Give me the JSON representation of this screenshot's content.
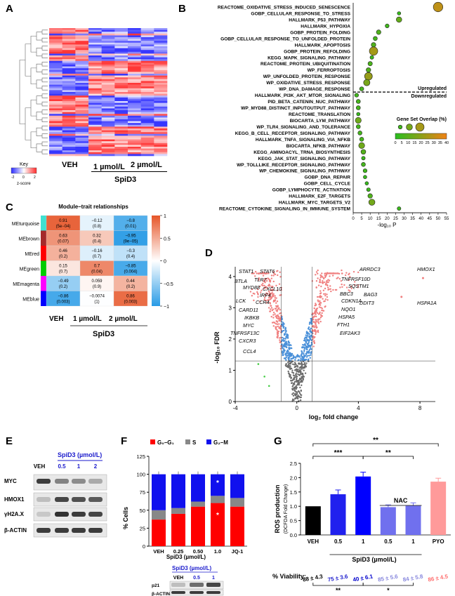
{
  "panels": {
    "a": {
      "letter": "A",
      "key_title": "Key",
      "key_ticks": [
        "-2",
        "0",
        "2"
      ],
      "key_label": "z-score",
      "col_labels": [
        "VEH",
        "1 µmol/L",
        "2 µmol/L"
      ],
      "group_label": "SpiD3"
    },
    "b": {
      "letter": "B",
      "up_label": "Upregulated",
      "down_label": "Downregulated",
      "legend_title": "Gene Set Overlap (%)",
      "legend_ticks": [
        "0",
        "5",
        "10",
        "15",
        "20",
        "25",
        "30",
        "35",
        "40"
      ],
      "xlabel": "-log₁₀ P",
      "x_ticks": [
        "0",
        "5",
        "10",
        "15",
        "20",
        "25",
        "30",
        "35",
        "40",
        "45",
        "50",
        "55"
      ]
    },
    "c": {
      "letter": "C",
      "title": "Module–trait relationships",
      "col_labels": [
        "VEH",
        "1 µmol/L",
        "2 µmol/L"
      ],
      "group_label": "SpiD3",
      "colorbar_ticks": [
        "1",
        "0.5",
        "0",
        "−0.5",
        "−1"
      ]
    },
    "d": {
      "letter": "D",
      "ylabel": "-log₁₀ FDR",
      "xlabel": "log₂ fold change",
      "x_ticks": [
        "-4",
        "0",
        "4",
        "8"
      ],
      "y_ticks": [
        "0",
        "1",
        "2",
        "3",
        "4"
      ],
      "genes_left": [
        "STAT1",
        "STAT6",
        "BTLA",
        "TLR7",
        "MYD88",
        "CXCL10",
        "IRF4",
        "LCK",
        "CCR4",
        "CARD11",
        "IKBKB",
        "MYC",
        "TNFRSF13C",
        "CXCR3",
        "CCL4"
      ],
      "genes_right": [
        "ARRDC3",
        "HMOX1",
        "TNFRSF10D",
        "SQSTM1",
        "BBC3",
        "BAG3",
        "CDKN1A",
        "DDIT3",
        "HSPA1A",
        "NQO1",
        "HSPA5",
        "FTH1",
        "EIF2AK3"
      ]
    },
    "e": {
      "letter": "E",
      "group_label": "SpiD3 (µmol/L)",
      "lanes": [
        "VEH",
        "0.5",
        "1",
        "2"
      ],
      "rows": [
        "MYC",
        "HMOX1",
        "γH2A.X",
        "β-ACTIN"
      ]
    },
    "f": {
      "letter": "F",
      "legend": [
        "G₀–G₁",
        "S",
        "G₂–M"
      ],
      "ylabel": "% Cells",
      "y_ticks": [
        "0",
        "25",
        "50",
        "75",
        "100",
        "125"
      ],
      "group_label": "SpiD3 (µmol/L)",
      "blot_group_label": "SpiD3 (µmol/L)",
      "blot_lanes": [
        "VEH",
        "0.5",
        "1"
      ],
      "blot_rows": [
        "p21",
        "β-ACTIN"
      ],
      "star": "*"
    },
    "g": {
      "letter": "G",
      "ylabel": "ROS production",
      "ylabel2": "(DCFDA Fold Change)",
      "y_ticks": [
        "0.0",
        "0.5",
        "1.0",
        "1.5",
        "2.0",
        "2.5"
      ],
      "group_label": "SpiD3 (µmol/L)",
      "nac_label": "NAC",
      "sig_top": "**",
      "sig_1": "***",
      "sig_2": "**",
      "viability_label": "% Viability:",
      "sig_bottom_1": "**",
      "sig_bottom_2": "*"
    }
  },
  "chart_data": [
    {
      "id": "b",
      "type": "scatter",
      "title": "",
      "xlabel": "-log10 P",
      "xlim": [
        0,
        55
      ],
      "pathways": [
        {
          "name": "REACTOME_OXIDATIVE_STRESS_INDUCED_SENESCENCE",
          "x": 50,
          "overlap": 30
        },
        {
          "name": "GOBP_CELLULAR_RESPONSE_TO_STRESS",
          "x": 27,
          "overlap": 3
        },
        {
          "name": "HALLMARK_P53_PATHWAY",
          "x": 27,
          "overlap": 12
        },
        {
          "name": "HALLMARK_HYPOXIA",
          "x": 20,
          "overlap": 5
        },
        {
          "name": "GOBP_PROTEIN_FOLDING",
          "x": 15,
          "overlap": 8
        },
        {
          "name": "GOBP_CELLULAR_RESPONSE_TO_UNFOLDED_PROTEIN",
          "x": 13,
          "overlap": 6
        },
        {
          "name": "HALLMARK_APOPTOSIS",
          "x": 12,
          "overlap": 8
        },
        {
          "name": "GOBP_PROTEIN_REFOLDING",
          "x": 12,
          "overlap": 25
        },
        {
          "name": "KEGG_MAPK_SIGNALING_PATHWAY",
          "x": 11,
          "overlap": 4
        },
        {
          "name": "REACTOME_PROTEIN_UBIQUITINATION",
          "x": 10,
          "overlap": 7
        },
        {
          "name": "WP_FERROPTOSIS",
          "x": 9,
          "overlap": 8
        },
        {
          "name": "WP_UNFOLDED_PROTEIN_RESPONSE",
          "x": 9,
          "overlap": 22
        },
        {
          "name": "WP_OXIDATIVE_STRESS_RESPONSE",
          "x": 8,
          "overlap": 16
        },
        {
          "name": "WP_DNA_DAMAGE_RESPONSE",
          "x": 5,
          "overlap": 6
        },
        {
          "name": "HALLMARK_PI3K_AKT_MTOR_SIGNALING",
          "x": 2,
          "overlap": 5
        },
        {
          "name": "PID_BETA_CATENIN_NUC_PATHWAY",
          "x": 3,
          "overlap": 6
        },
        {
          "name": "WP_MYD88_DISTINCT_INPUTOUTPUT_PATHWAY",
          "x": 3,
          "overlap": 6
        },
        {
          "name": "REACTOME_TRANSLATION",
          "x": 3,
          "overlap": 3
        },
        {
          "name": "BIOCARTA_LYM_PATHWAY",
          "x": 3,
          "overlap": 14
        },
        {
          "name": "WP_TLR4_SIGNALING_AND_TOLERANCE",
          "x": 3,
          "overlap": 6
        },
        {
          "name": "KEGG_B_CELL_RECEPTOR_SIGNALING_PATHWAY",
          "x": 4,
          "overlap": 6
        },
        {
          "name": "HALLMARK_TNFA_SIGNALING_VIA_NFKB",
          "x": 5,
          "overlap": 6
        },
        {
          "name": "BIOCARTA_NFKB_PATHWAY",
          "x": 5,
          "overlap": 14
        },
        {
          "name": "KEGG_AMINOACYL_TRNA_BIOSYNTHESIS",
          "x": 6,
          "overlap": 9
        },
        {
          "name": "KEGG_JAK_STAT_SIGNALING_PATHWAY",
          "x": 6,
          "overlap": 4
        },
        {
          "name": "WP_TOLLLIKE_RECEPTOR_SIGNALING_PATHWAY",
          "x": 6,
          "overlap": 6
        },
        {
          "name": "WP_CHEMOKINE_SIGNALING_PATHWAY",
          "x": 7,
          "overlap": 5
        },
        {
          "name": "GOBP_DNA_REPAIR",
          "x": 7,
          "overlap": 3
        },
        {
          "name": "GOBP_CELL_CYCLE",
          "x": 8,
          "overlap": 3
        },
        {
          "name": "GOBP_LYMPHOCYTE_ACTIVATION",
          "x": 9,
          "overlap": 4
        },
        {
          "name": "HALLMARK_E2F_TARGETS",
          "x": 10,
          "overlap": 8
        },
        {
          "name": "HALLMARK_MYC_TARGETS_V2",
          "x": 11,
          "overlap": 15
        },
        {
          "name": "REACTOME_CYTOKINE_SIGNALING_IN_IMMUNE_SYSTEM",
          "x": 27,
          "overlap": 4
        }
      ],
      "up_count": 14
    },
    {
      "id": "c",
      "type": "heatmap",
      "title": "Module–trait relationships",
      "rows": [
        "MEturquoise",
        "MEbrown",
        "MEred",
        "MEgreen",
        "MEmagenta",
        "MEblue"
      ],
      "row_colors": [
        "#40e0d0",
        "#a52a2a",
        "#ff0000",
        "#00cc00",
        "#ff00ff",
        "#0000ff"
      ],
      "cols": [
        "VEH",
        "1 µmol/L",
        "2 µmol/L"
      ],
      "values": [
        [
          0.91,
          -0.12,
          -0.8
        ],
        [
          0.63,
          0.32,
          -0.95
        ],
        [
          0.46,
          -0.16,
          -0.3
        ],
        [
          0.15,
          0.7,
          -0.85
        ],
        [
          -0.49,
          0.059,
          0.44
        ],
        [
          -0.86,
          -0.0074,
          0.86
        ]
      ],
      "pvalues": [
        [
          "(5e−04)",
          "(0.8)",
          "(0.01)"
        ],
        [
          "(0.07)",
          "(0.4)",
          "(9e−05)"
        ],
        [
          "(0.2)",
          "(0.7)",
          "(0.4)"
        ],
        [
          "(0.7)",
          "(0.04)",
          "(0.004)"
        ],
        [
          "(0.2)",
          "(0.9)",
          "(0.2)"
        ],
        [
          "(0.003)",
          "(1)",
          "(0.003)"
        ]
      ],
      "value_labels": [
        [
          "0.91",
          "−0.12",
          "−0.8"
        ],
        [
          "0.63",
          "0.32",
          "−0.95"
        ],
        [
          "0.46",
          "−0.16",
          "−0.3"
        ],
        [
          "0.15",
          "0.7",
          "−0.85"
        ],
        [
          "−0.49",
          "0.059",
          "0.44"
        ],
        [
          "−0.86",
          "−0.0074",
          "0.86"
        ]
      ]
    },
    {
      "id": "f",
      "type": "bar",
      "stacked": true,
      "categories": [
        "VEH",
        "0.25",
        "0.50",
        "1.0",
        "JQ-1"
      ],
      "series": [
        {
          "name": "G0–G1",
          "values": [
            37,
            45,
            55,
            60,
            55
          ],
          "color": "#ff0000"
        },
        {
          "name": "S",
          "values": [
            13,
            8,
            7,
            10,
            12
          ],
          "color": "#888888"
        },
        {
          "name": "G2–M",
          "values": [
            50,
            47,
            38,
            30,
            33
          ],
          "color": "#1010ee"
        }
      ],
      "ylabel": "% Cells",
      "ylim": [
        0,
        125
      ]
    },
    {
      "id": "g",
      "type": "bar",
      "categories": [
        "VEH",
        "0.5",
        "1",
        "0.5",
        "1",
        "PYO"
      ],
      "values": [
        1.0,
        1.42,
        2.04,
        0.97,
        1.02,
        1.86
      ],
      "errors": [
        0,
        0.15,
        0.15,
        0.08,
        0.1,
        0.12
      ],
      "colors": [
        "#000000",
        "#2020ee",
        "#0000ff",
        "#7070ee",
        "#7070ee",
        "#ff9a9a"
      ],
      "ylabel": "ROS production (DCFDA Fold Change)",
      "ylim": [
        0,
        2.5
      ],
      "viability": [
        "88 ± 4.3",
        "75 ± 3.6",
        "40 ± 6.1",
        "85 ± 5.6",
        "84 ± 5.8",
        "86 ± 4.5"
      ],
      "viability_colors": [
        "#000000",
        "#1a1acc",
        "#0000cc",
        "#8888dd",
        "#8888dd",
        "#ff7070"
      ]
    }
  ]
}
